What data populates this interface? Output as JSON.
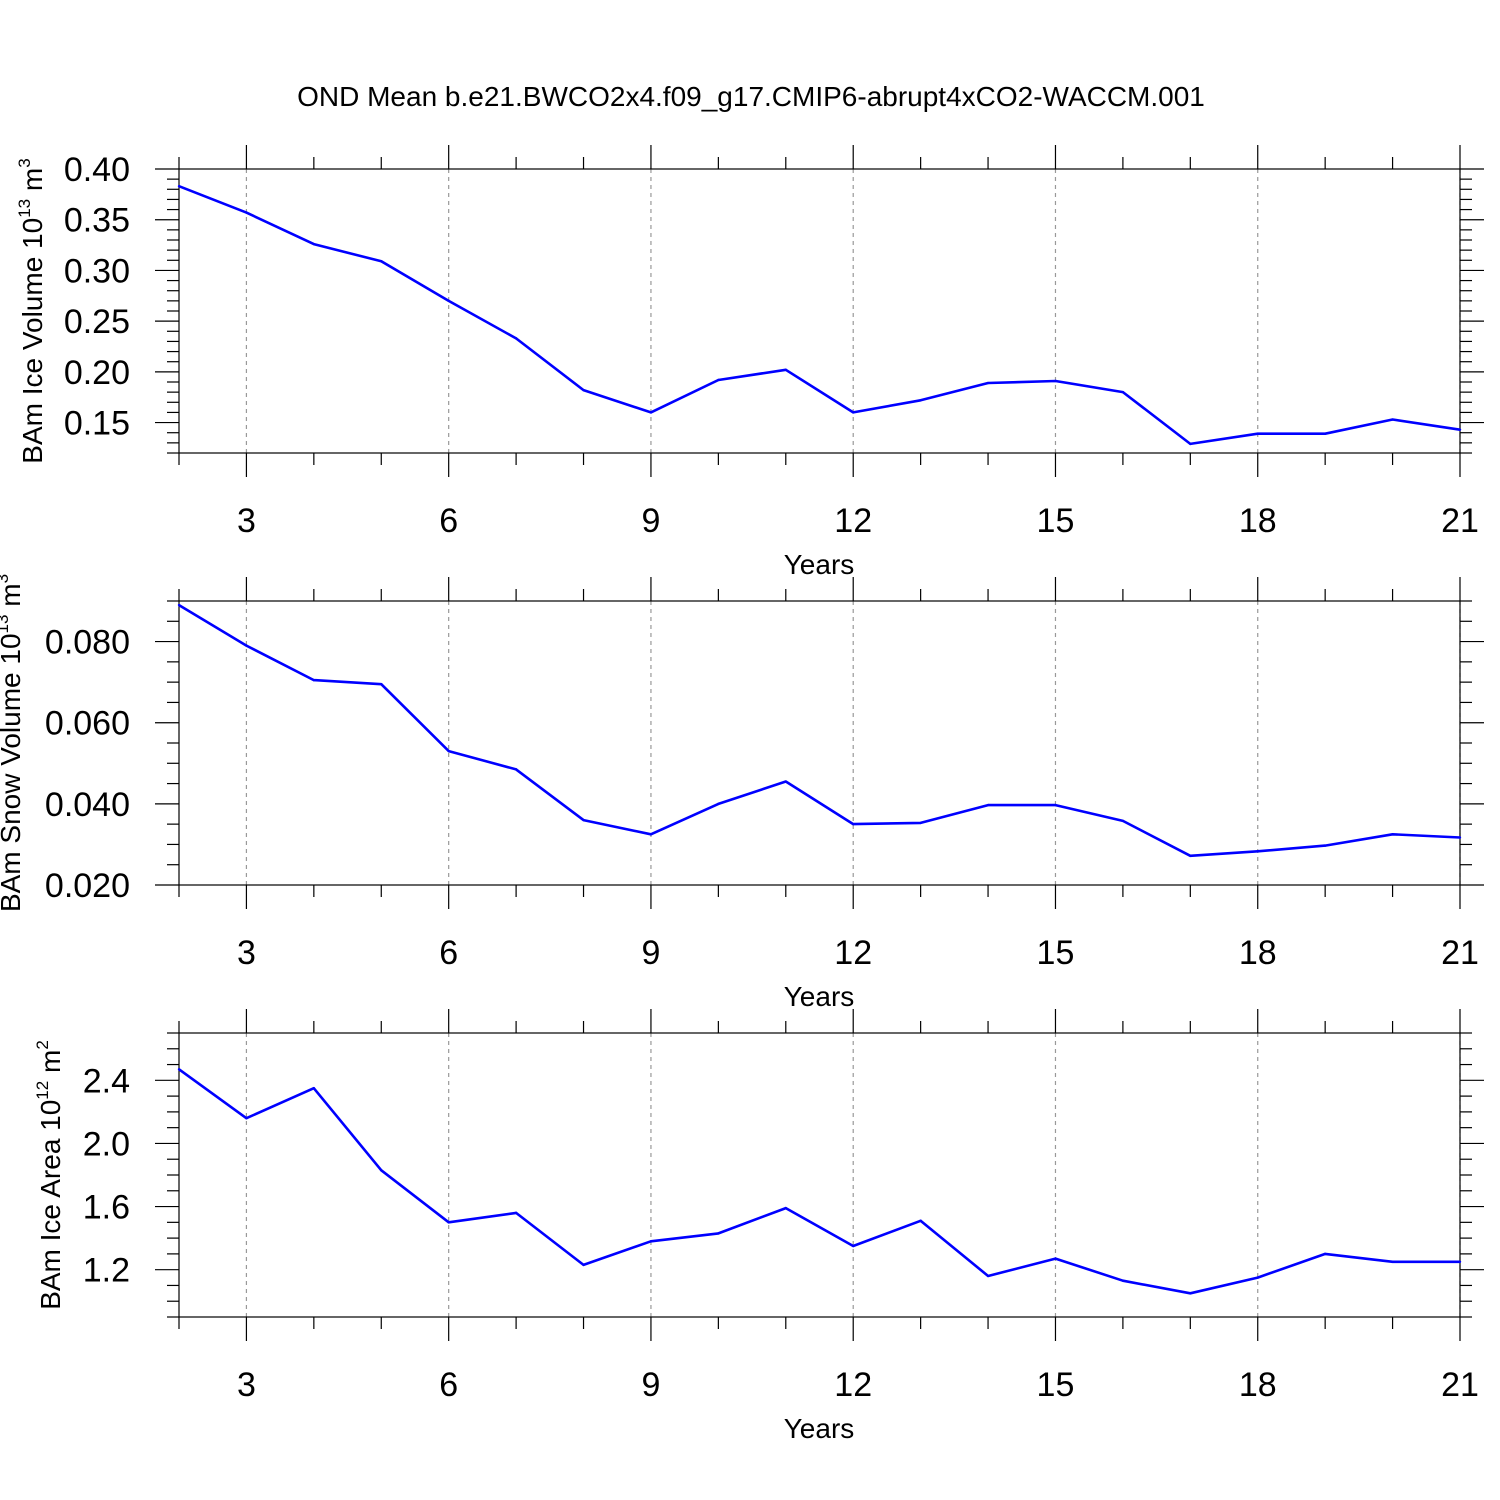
{
  "title": "OND Mean b.e21.BWCO2x4.f09_g17.CMIP6-abrupt4xCO2-WACCM.001",
  "line_color": "#0000ff",
  "grid_color": "#999999",
  "chart_data": [
    {
      "type": "line",
      "ylabel": {
        "text": "BAm Ice Volume 10",
        "exp": "13",
        "unit": " m",
        "unit_exp": "3"
      },
      "xlabel": "Years",
      "xlim": [
        2,
        21
      ],
      "ylim": [
        0.12,
        0.4
      ],
      "xticks": [
        3,
        6,
        9,
        12,
        15,
        18,
        21
      ],
      "xtick_labels": [
        "3",
        "6",
        "9",
        "12",
        "15",
        "18",
        "21"
      ],
      "yticks": [
        0.15,
        0.2,
        0.25,
        0.3,
        0.35,
        0.4
      ],
      "ytick_labels": [
        "0.15",
        "0.20",
        "0.25",
        "0.30",
        "0.35",
        "0.40"
      ],
      "yminor_step": 0.01,
      "grid": "x-dashed",
      "x": [
        2,
        3,
        4,
        5,
        6,
        7,
        8,
        9,
        10,
        11,
        12,
        13,
        14,
        15,
        16,
        17,
        18,
        19,
        20,
        21
      ],
      "values": [
        0.383,
        0.357,
        0.326,
        0.309,
        0.27,
        0.233,
        0.182,
        0.16,
        0.192,
        0.202,
        0.16,
        0.172,
        0.189,
        0.191,
        0.18,
        0.129,
        0.139,
        0.139,
        0.153,
        0.143
      ]
    },
    {
      "type": "line",
      "ylabel": {
        "text": "BAm Snow Volume 10",
        "exp": "13",
        "unit": " m",
        "unit_exp": "3"
      },
      "xlabel": "Years",
      "xlim": [
        2,
        21
      ],
      "ylim": [
        0.02,
        0.09
      ],
      "xticks": [
        3,
        6,
        9,
        12,
        15,
        18,
        21
      ],
      "xtick_labels": [
        "3",
        "6",
        "9",
        "12",
        "15",
        "18",
        "21"
      ],
      "yticks": [
        0.02,
        0.04,
        0.06,
        0.08
      ],
      "ytick_labels": [
        "0.020",
        "0.040",
        "0.060",
        "0.080"
      ],
      "yminor_step": 0.005,
      "grid": "x-dashed",
      "x": [
        2,
        3,
        4,
        5,
        6,
        7,
        8,
        9,
        10,
        11,
        12,
        13,
        14,
        15,
        16,
        17,
        18,
        19,
        20,
        21
      ],
      "values": [
        0.089,
        0.079,
        0.0705,
        0.0695,
        0.053,
        0.0485,
        0.036,
        0.0325,
        0.04,
        0.0455,
        0.035,
        0.0353,
        0.0397,
        0.0397,
        0.0358,
        0.0272,
        0.0283,
        0.0297,
        0.0325,
        0.0317
      ]
    },
    {
      "type": "line",
      "ylabel": {
        "text": "BAm Ice Area 10",
        "exp": "12",
        "unit": " m",
        "unit_exp": "2"
      },
      "xlabel": "Years",
      "xlim": [
        2,
        21
      ],
      "ylim": [
        0.9,
        2.7
      ],
      "xticks": [
        3,
        6,
        9,
        12,
        15,
        18,
        21
      ],
      "xtick_labels": [
        "3",
        "6",
        "9",
        "12",
        "15",
        "18",
        "21"
      ],
      "yticks": [
        1.2,
        1.6,
        2.0,
        2.4
      ],
      "ytick_labels": [
        "1.2",
        "1.6",
        "2.0",
        "2.4"
      ],
      "yminor_step": 0.1,
      "grid": "x-dashed",
      "x": [
        2,
        3,
        4,
        5,
        6,
        7,
        8,
        9,
        10,
        11,
        12,
        13,
        14,
        15,
        16,
        17,
        18,
        19,
        20,
        21
      ],
      "values": [
        2.47,
        2.16,
        2.35,
        1.83,
        1.5,
        1.56,
        1.23,
        1.38,
        1.43,
        1.59,
        1.35,
        1.51,
        1.16,
        1.27,
        1.13,
        1.05,
        1.15,
        1.3,
        1.25,
        1.25
      ]
    }
  ]
}
